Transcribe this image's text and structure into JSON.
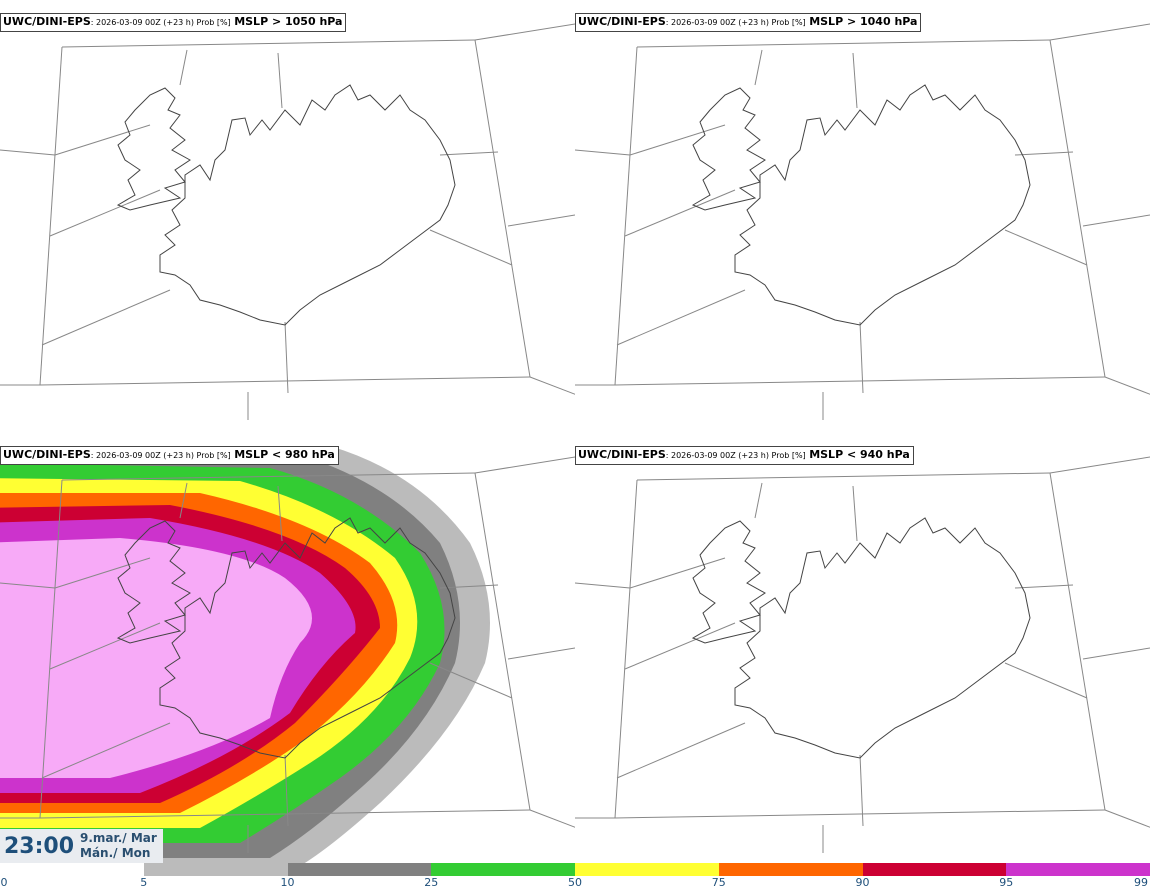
{
  "panels": [
    {
      "model": "UWC/DINI-EPS",
      "run": "2026-03-09 00Z (+23 h) Prob [%]",
      "field": "MSLP > 1050 hPa"
    },
    {
      "model": "UWC/DINI-EPS",
      "run": "2026-03-09 00Z (+23 h) Prob [%]",
      "field": "MSLP > 1040 hPa"
    },
    {
      "model": "UWC/DINI-EPS",
      "run": "2026-03-09 00Z (+23 h) Prob [%]",
      "field": "MSLP < 980 hPa"
    },
    {
      "model": "UWC/DINI-EPS",
      "run": "2026-03-09 00Z (+23 h) Prob [%]",
      "field": "MSLP < 940 hPa"
    }
  ],
  "valid": {
    "time": "23:00",
    "date_line1": "9.mar./ Mar",
    "date_line2": "Mán./ Mon"
  },
  "colorbar": {
    "ticks": [
      "0",
      "5",
      "10",
      "25",
      "50",
      "75",
      "90",
      "95",
      "99"
    ],
    "colors": [
      "#ffffff",
      "#bbbbbb",
      "#808080",
      "#33cc33",
      "#ffff33",
      "#ff6600",
      "#cc0033",
      "#cc33cc",
      "#f7aaf7"
    ]
  }
}
